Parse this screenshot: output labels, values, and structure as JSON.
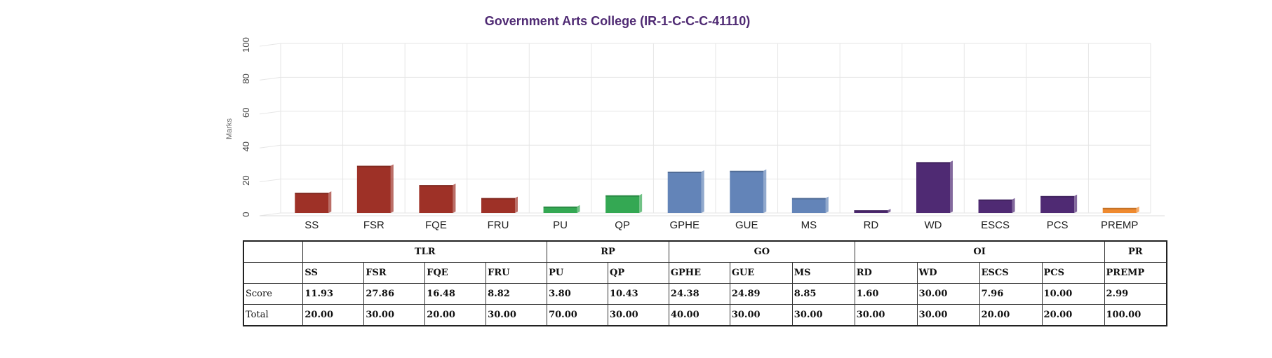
{
  "chart_data": {
    "type": "bar",
    "title": "Government Arts College (IR-1-C-C-C-41110)",
    "ylabel": "Marks",
    "ylim": [
      0,
      100
    ],
    "yticks": [
      0,
      20,
      40,
      60,
      80,
      100
    ],
    "grid": true,
    "categories": [
      "SS",
      "FSR",
      "FQE",
      "FRU",
      "PU",
      "QP",
      "GPHE",
      "GUE",
      "MS",
      "RD",
      "WD",
      "ESCS",
      "PCS",
      "PREMP"
    ],
    "values": [
      11.93,
      27.86,
      16.48,
      8.82,
      3.8,
      10.43,
      24.38,
      24.89,
      8.85,
      1.6,
      30.0,
      7.96,
      10.0,
      2.99
    ],
    "group_colors": [
      "#9e3127",
      "#9e3127",
      "#9e3127",
      "#9e3127",
      "#34a853",
      "#34a853",
      "#6384b8",
      "#6384b8",
      "#6384b8",
      "#4f2a73",
      "#4f2a73",
      "#4f2a73",
      "#4f2a73",
      "#ef8a2f"
    ]
  },
  "colors": {
    "title": "#4f2a73",
    "grid": "#e6e6e6"
  },
  "table": {
    "groups": [
      {
        "name": "TLR",
        "params": [
          "SS",
          "FSR",
          "FQE",
          "FRU"
        ]
      },
      {
        "name": "RP",
        "params": [
          "PU",
          "QP"
        ]
      },
      {
        "name": "GO",
        "params": [
          "GPHE",
          "GUE",
          "MS"
        ]
      },
      {
        "name": "OI",
        "params": [
          "RD",
          "WD",
          "ESCS",
          "PCS"
        ]
      },
      {
        "name": "PR",
        "params": [
          "PREMP"
        ]
      }
    ],
    "rows": [
      {
        "label": "Score",
        "values": [
          "11.93",
          "27.86",
          "16.48",
          "8.82",
          "3.80",
          "10.43",
          "24.38",
          "24.89",
          "8.85",
          "1.60",
          "30.00",
          "7.96",
          "10.00",
          "2.99"
        ]
      },
      {
        "label": "Total",
        "values": [
          "20.00",
          "30.00",
          "20.00",
          "30.00",
          "70.00",
          "30.00",
          "40.00",
          "30.00",
          "30.00",
          "30.00",
          "30.00",
          "20.00",
          "20.00",
          "100.00"
        ]
      }
    ]
  }
}
